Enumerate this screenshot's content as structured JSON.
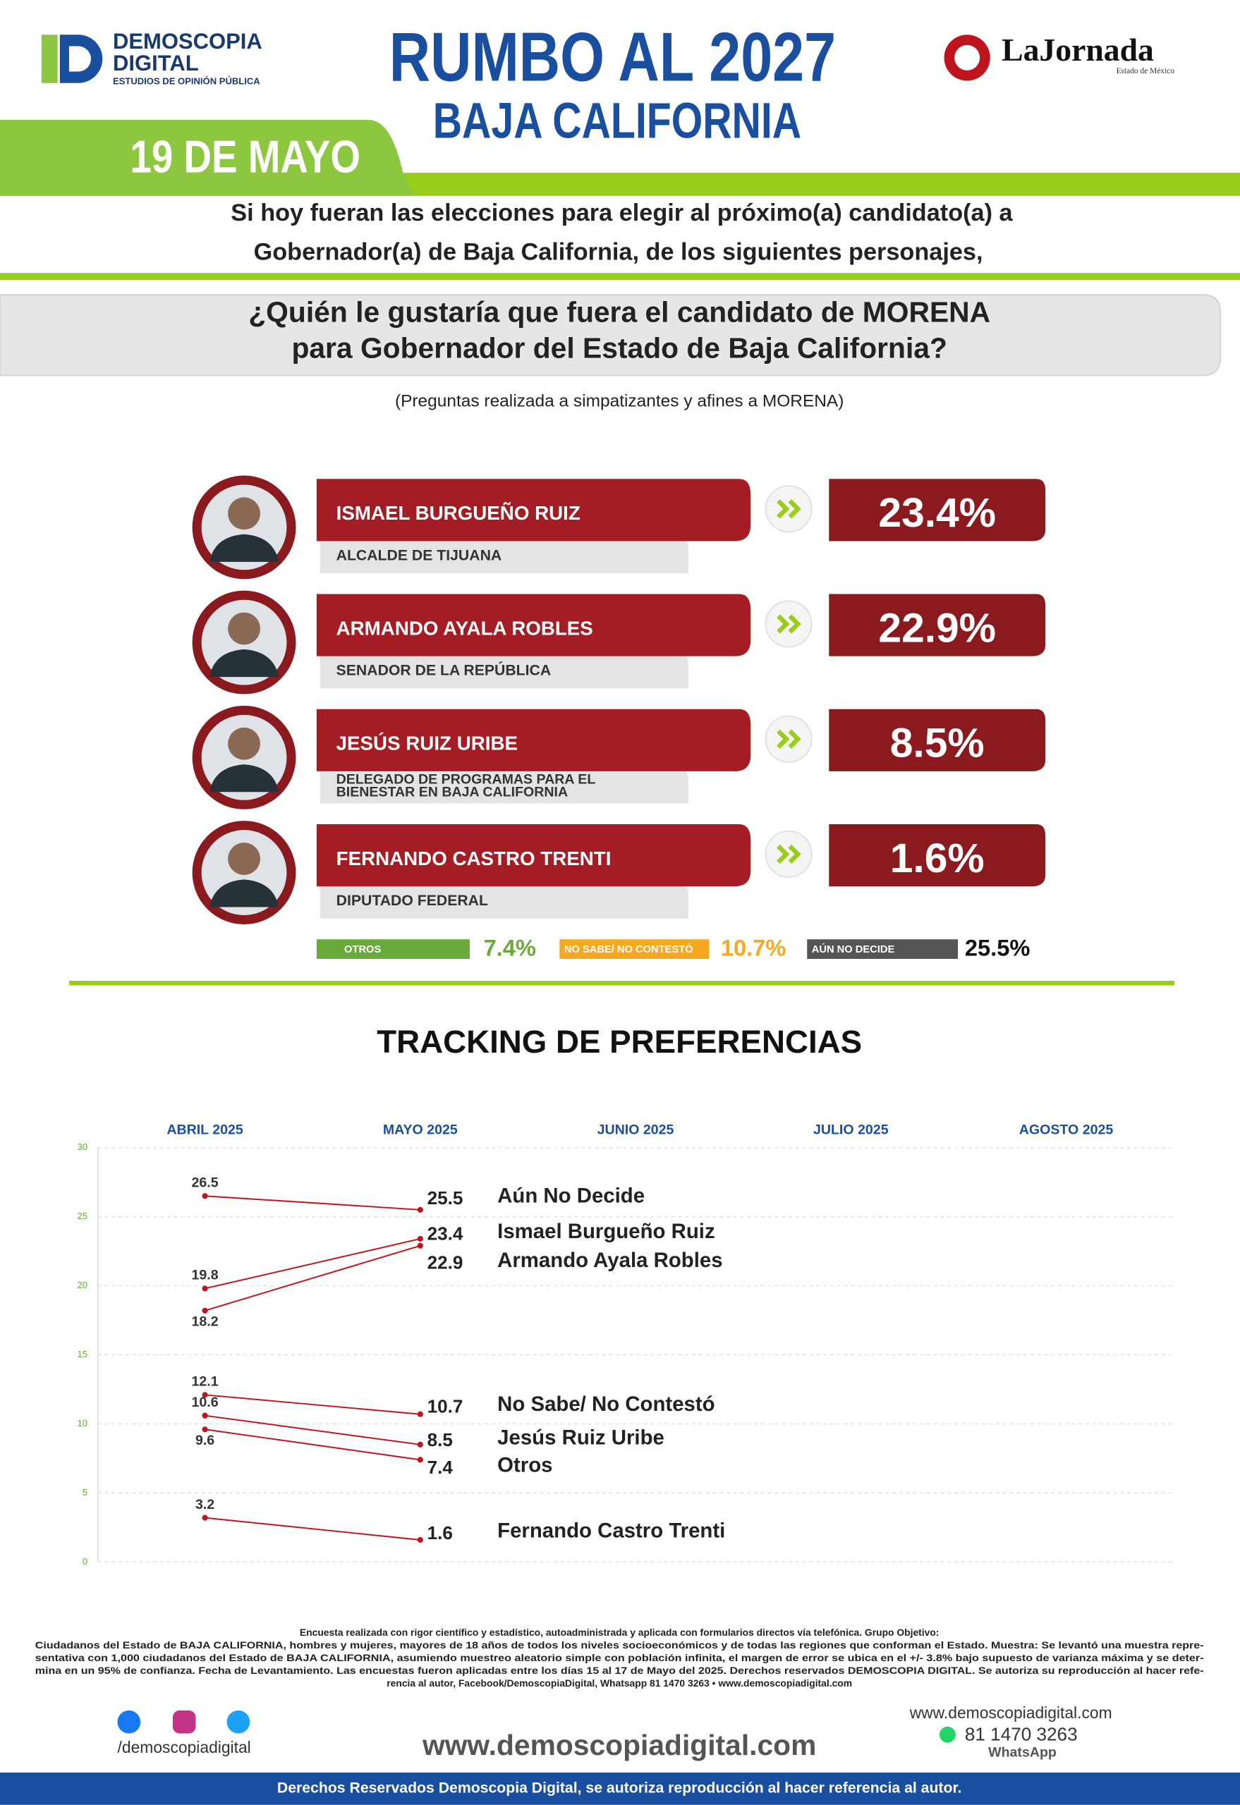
{
  "header": {
    "brand": [
      "DEMOSCOPIA",
      "DIGITAL"
    ],
    "brand_tagline": "ESTUDIOS DE OPINIÓN PÚBLICA",
    "title": "RUMBO AL 2027",
    "subtitle": "BAJA CALIFORNIA",
    "date": "19 DE MAYO",
    "partner": "LaJornada",
    "partner_sub": "Estado de México"
  },
  "intro": [
    "Si hoy fueran las elecciones para elegir al próximo(a) candidato(a) a",
    "Gobernador(a) de Baja California, de los siguientes personajes,"
  ],
  "question": [
    "¿Quién le gustaría que fuera el candidato de MORENA",
    "para Gobernador del Estado de Baja California?"
  ],
  "note": "(Preguntas realizada a simpatizantes y afines a MORENA)",
  "candidates": [
    {
      "name": "ISMAEL BURGUEÑO RUIZ",
      "role": [
        "ALCALDE DE TIJUANA"
      ],
      "result": "23.4%"
    },
    {
      "name": "ARMANDO AYALA ROBLES",
      "role": [
        "SENADOR DE LA REPÚBLICA"
      ],
      "result": "22.9%"
    },
    {
      "name": "JESÚS RUIZ URIBE",
      "role": [
        "DELEGADO DE PROGRAMAS PARA EL",
        "BIENESTAR EN BAJA CALIFORNIA"
      ],
      "result": "8.5%"
    },
    {
      "name": "FERNANDO CASTRO TRENTI",
      "role": [
        "DIPUTADO FEDERAL"
      ],
      "result": "1.6%"
    }
  ],
  "others": [
    {
      "label": "OTROS",
      "result": "7.4%",
      "color": "#6aaa3a"
    },
    {
      "label": "NO SABE/ NO CONTESTÓ",
      "result": "10.7%",
      "color": "#f6a821"
    },
    {
      "label": "AÚN NO DECIDE",
      "result": "25.5%",
      "color": "#555555"
    }
  ],
  "chart_data": {
    "type": "line",
    "title": "TRACKING DE PREFERENCIAS",
    "categories": [
      "ABRIL 2025",
      "MAYO 2025",
      "JUNIO 2025",
      "JULIO 2025",
      "AGOSTO 2025"
    ],
    "ylim": [
      0,
      30
    ],
    "yticks": [
      0,
      5,
      10,
      15,
      20,
      25,
      30
    ],
    "grid": true,
    "color": "#c0141c",
    "series": [
      {
        "name": "Aún No Decide",
        "values": [
          26.5,
          25.5,
          null,
          null,
          null
        ]
      },
      {
        "name": "Ismael Burgueño Ruiz",
        "values": [
          19.8,
          23.4,
          null,
          null,
          null
        ]
      },
      {
        "name": "Armando Ayala Robles",
        "values": [
          18.2,
          22.9,
          null,
          null,
          null
        ]
      },
      {
        "name": "No Sabe/ No Contestó",
        "values": [
          12.1,
          10.7,
          null,
          null,
          null
        ]
      },
      {
        "name": "Jesús Ruiz Uribe",
        "values": [
          10.6,
          8.5,
          null,
          null,
          null
        ]
      },
      {
        "name": "Otros",
        "values": [
          9.6,
          7.4,
          null,
          null,
          null
        ]
      },
      {
        "name": "Fernando Castro Trenti",
        "values": [
          3.2,
          1.6,
          null,
          null,
          null
        ]
      }
    ]
  },
  "methodology": [
    "Encuesta realizada con rigor científico y estadístico, autoadministrada y aplicada con formularios directos vía telefónica. Grupo Objetivo:",
    "Ciudadanos del Estado de BAJA CALIFORNIA, hombres y mujeres, mayores de 18 años de todos los niveles socioeconómicos y de todas las regiones que conforman el Estado. Muestra: Se levantó una muestra repre-",
    "sentativa con 1,000 ciudadanos del Estado de BAJA CALIFORNIA, asumiendo muestreo aleatorio simple con población infinita, el margen de error se ubica en el +/- 3.8% bajo supuesto de varianza máxima y se deter-",
    "mina en un 95% de confianza. Fecha de Levantamiento. Las encuestas fueron aplicadas entre los días 15 al 17 de Mayo del 2025. Derechos reservados DEMOSCOPIA DIGITAL. Se autoriza su reproducción al hacer refe-",
    "rencia al autor, Facebook/DemoscopiaDigital, Whatsapp 81 1470 3263 • www.demoscopiadigital.com"
  ],
  "footer": {
    "social": "/demoscopiadigital",
    "website": "www.demoscopiadigital.com",
    "website_small": "www.demoscopiadigital.com",
    "phone": "81 1470 3263",
    "phone_label": "WhatsApp",
    "rights": "Derechos Reservados Demoscopia Digital, se autoriza reproducción al hacer referencia al autor."
  }
}
